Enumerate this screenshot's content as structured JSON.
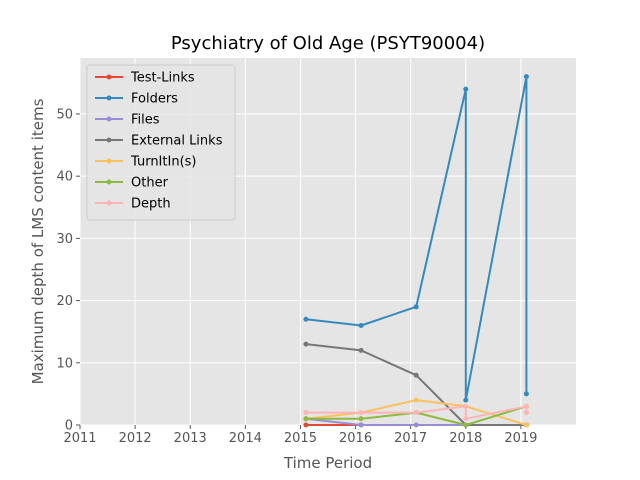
{
  "chart_data": {
    "type": "line",
    "title": "Psychiatry of Old Age (PSYT90004)",
    "xlabel": "Time Period",
    "ylabel": "Maximum depth of LMS content items",
    "xlim": [
      2011,
      2020
    ],
    "ylim": [
      0,
      59
    ],
    "xticks": [
      2011,
      2012,
      2013,
      2014,
      2015,
      2016,
      2017,
      2018,
      2019
    ],
    "yticks": [
      0,
      10,
      20,
      30,
      40,
      50
    ],
    "grid": true,
    "legend_position": "upper-left",
    "series": [
      {
        "name": "Test-Links",
        "color": "#e24a33",
        "x": [
          2015.1,
          2016.1
        ],
        "y": [
          0,
          0
        ]
      },
      {
        "name": "Folders",
        "color": "#348abd",
        "x": [
          2015.1,
          2016.1,
          2017.1,
          2018.0,
          2018.0,
          2019.1,
          2019.1
        ],
        "y": [
          17,
          16,
          19,
          54,
          4,
          56,
          5
        ]
      },
      {
        "name": "Files",
        "color": "#988ed5",
        "x": [
          2015.1,
          2016.1,
          2017.1,
          2018.0,
          2019.1
        ],
        "y": [
          1,
          0,
          0,
          0,
          0
        ]
      },
      {
        "name": "External Links",
        "color": "#777777",
        "x": [
          2015.1,
          2016.1,
          2017.1,
          2018.0,
          2019.1
        ],
        "y": [
          13,
          12,
          8,
          0,
          0
        ]
      },
      {
        "name": "TurnItIn(s)",
        "color": "#fbc15e",
        "x": [
          2015.1,
          2016.1,
          2017.1,
          2018.0,
          2019.1
        ],
        "y": [
          1,
          2,
          4,
          3,
          0
        ]
      },
      {
        "name": "Other",
        "color": "#8eba42",
        "x": [
          2015.1,
          2016.1,
          2017.1,
          2018.0,
          2019.1
        ],
        "y": [
          1,
          1,
          2,
          0,
          3
        ]
      },
      {
        "name": "Depth",
        "color": "#ffb5b8",
        "x": [
          2015.1,
          2016.1,
          2017.1,
          2018.0,
          2018.0,
          2019.1,
          2019.1
        ],
        "y": [
          2,
          2,
          2,
          3,
          1,
          3,
          2
        ]
      }
    ]
  }
}
